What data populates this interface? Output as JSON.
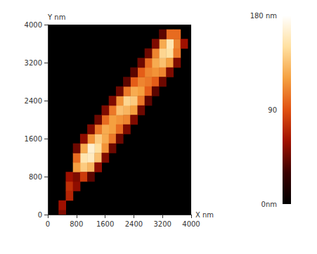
{
  "chart_data": {
    "type": "heatmap",
    "x_label": "X nm",
    "y_label": "Y nm",
    "xlim": [
      0,
      4000
    ],
    "ylim": [
      0,
      4000
    ],
    "xticks": [
      0,
      800,
      1600,
      2400,
      3200,
      4000
    ],
    "yticks": [
      0,
      800,
      1600,
      2400,
      3200,
      4000
    ],
    "grid": false,
    "cells": [
      [
        400,
        0,
        50
      ],
      [
        400,
        200,
        60
      ],
      [
        600,
        400,
        70
      ],
      [
        600,
        600,
        75
      ],
      [
        800,
        600,
        55
      ],
      [
        600,
        800,
        60
      ],
      [
        800,
        800,
        50
      ],
      [
        1000,
        1000,
        140
      ],
      [
        1200,
        1200,
        160
      ],
      [
        1400,
        1400,
        150
      ],
      [
        1600,
        1600,
        125
      ],
      [
        1800,
        1800,
        120
      ],
      [
        2000,
        2000,
        115
      ],
      [
        2200,
        2200,
        130
      ],
      [
        2400,
        2400,
        140
      ],
      [
        2600,
        2600,
        120
      ],
      [
        2800,
        2800,
        105
      ],
      [
        3000,
        3000,
        115
      ],
      [
        3200,
        3200,
        135
      ],
      [
        3400,
        3400,
        150
      ],
      [
        3600,
        3600,
        110
      ],
      [
        800,
        1000,
        120
      ],
      [
        1000,
        1200,
        155
      ],
      [
        1200,
        1400,
        165
      ],
      [
        1400,
        1600,
        140
      ],
      [
        1600,
        1800,
        125
      ],
      [
        1800,
        2000,
        120
      ],
      [
        2000,
        2200,
        135
      ],
      [
        2200,
        2400,
        145
      ],
      [
        2400,
        2600,
        125
      ],
      [
        2600,
        2800,
        110
      ],
      [
        2800,
        3000,
        110
      ],
      [
        3000,
        3200,
        125
      ],
      [
        3200,
        3400,
        145
      ],
      [
        3400,
        3600,
        155
      ],
      [
        3600,
        3800,
        100
      ],
      [
        1000,
        800,
        80
      ],
      [
        1200,
        1000,
        130
      ],
      [
        1400,
        1200,
        135
      ],
      [
        1600,
        1400,
        115
      ],
      [
        1800,
        1600,
        105
      ],
      [
        2000,
        1800,
        100
      ],
      [
        2200,
        2000,
        110
      ],
      [
        2400,
        2200,
        120
      ],
      [
        2600,
        2400,
        105
      ],
      [
        2800,
        2600,
        95
      ],
      [
        3000,
        2800,
        95
      ],
      [
        3200,
        3000,
        110
      ],
      [
        3400,
        3200,
        120
      ],
      [
        3600,
        3400,
        105
      ],
      [
        3800,
        3600,
        60
      ],
      [
        800,
        1200,
        100
      ],
      [
        1000,
        1400,
        125
      ],
      [
        1200,
        1600,
        115
      ],
      [
        1400,
        1800,
        105
      ],
      [
        1600,
        2000,
        100
      ],
      [
        1800,
        2200,
        105
      ],
      [
        2000,
        2400,
        115
      ],
      [
        2200,
        2600,
        105
      ],
      [
        2400,
        2800,
        95
      ],
      [
        2600,
        3000,
        95
      ],
      [
        2800,
        3200,
        100
      ],
      [
        3000,
        3400,
        110
      ],
      [
        3200,
        3600,
        125
      ],
      [
        3400,
        3800,
        100
      ],
      [
        1200,
        800,
        40
      ],
      [
        1400,
        1000,
        55
      ],
      [
        1600,
        1200,
        50
      ],
      [
        1800,
        1400,
        45
      ],
      [
        2000,
        1600,
        45
      ],
      [
        2200,
        1800,
        50
      ],
      [
        2400,
        2000,
        50
      ],
      [
        2600,
        2200,
        45
      ],
      [
        2800,
        2400,
        40
      ],
      [
        3000,
        2600,
        40
      ],
      [
        3200,
        2800,
        45
      ],
      [
        3400,
        3000,
        50
      ],
      [
        3600,
        3200,
        50
      ],
      [
        800,
        1400,
        45
      ],
      [
        1000,
        1600,
        55
      ],
      [
        1200,
        1800,
        50
      ],
      [
        1400,
        2000,
        45
      ],
      [
        1600,
        2200,
        50
      ],
      [
        1800,
        2400,
        50
      ],
      [
        2000,
        2600,
        45
      ],
      [
        2200,
        2800,
        40
      ],
      [
        2400,
        3000,
        40
      ],
      [
        2600,
        3200,
        45
      ],
      [
        2800,
        3400,
        45
      ],
      [
        3000,
        3600,
        50
      ],
      [
        3200,
        3800,
        40
      ]
    ],
    "colorbar": {
      "range": [
        0,
        180
      ],
      "ticks": [
        {
          "value": 0,
          "label": "0nm"
        },
        90,
        {
          "value": 180,
          "label": "180 nm"
        }
      ]
    }
  }
}
